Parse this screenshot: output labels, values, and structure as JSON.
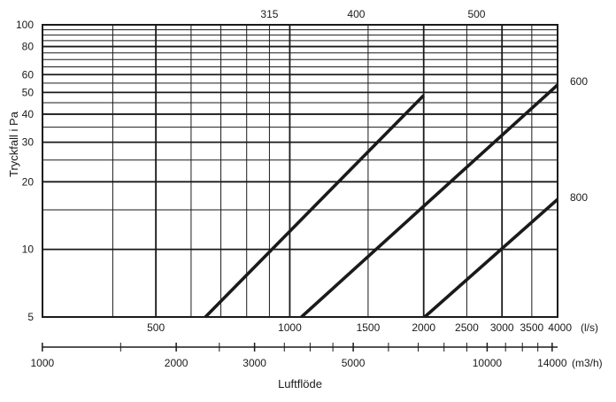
{
  "chart_data": {
    "type": "line",
    "title": "",
    "ylabel": "Tryckfall i Pa",
    "xlabel": "Luftflöde",
    "x_unit_ls": "(l/s)",
    "x_unit_m3h": "(m3/h)",
    "log_scale_x": true,
    "log_scale_y": true,
    "xlim_ls": [
      278,
      4000
    ],
    "ylim": [
      5,
      100
    ],
    "grid": true,
    "y_ticks": [
      5,
      10,
      20,
      30,
      40,
      50,
      60,
      80,
      100
    ],
    "y_grid_values": [
      5,
      10,
      15,
      20,
      25,
      30,
      35,
      40,
      45,
      50,
      55,
      60,
      65,
      70,
      75,
      80,
      85,
      90,
      95,
      100
    ],
    "y_major_values": [
      5,
      10,
      20,
      30,
      40,
      50,
      60,
      80,
      100
    ],
    "x_ticks_ls": [
      500,
      1000,
      1500,
      2000,
      2500,
      3000,
      3500,
      4000
    ],
    "x_ticks_ls_labels": [
      "500",
      "1000",
      "1500",
      "2000",
      "2500",
      "3000",
      "3500",
      "4000"
    ],
    "x_grid_ls": [
      400,
      500,
      600,
      700,
      800,
      900,
      1000,
      1500,
      2000,
      2500,
      3000,
      3500,
      4000
    ],
    "x_ticks_m3h": [
      1000,
      2000,
      3000,
      5000,
      10000,
      14000
    ],
    "x_ticks_m3h_labels": [
      "1000",
      "2000",
      "3000",
      "5000",
      "10000",
      "14000"
    ],
    "x_minor_m3h": [
      1500,
      2500,
      3500,
      4000,
      4500,
      6000,
      7000,
      8000,
      9000,
      11000,
      12000,
      13000
    ],
    "series": [
      {
        "name": "315",
        "x": [
          646,
          2000
        ],
        "y": [
          5,
          48.5
        ]
      },
      {
        "name": "400",
        "x": [
          1062,
          4000
        ],
        "y": [
          5,
          54
        ]
      },
      {
        "name": "500",
        "x": [
          2010,
          4000
        ],
        "y": [
          5,
          16.7
        ]
      }
    ],
    "annotations": [
      {
        "text": "315",
        "x": 900,
        "y": 100
      },
      {
        "text": "400",
        "x": 1410,
        "y": 100
      },
      {
        "text": "500",
        "x": 2630,
        "y": 100
      },
      {
        "text": "600",
        "x": 4000,
        "y": 56
      },
      {
        "text": "800",
        "x": 4000,
        "y": 17
      }
    ]
  }
}
